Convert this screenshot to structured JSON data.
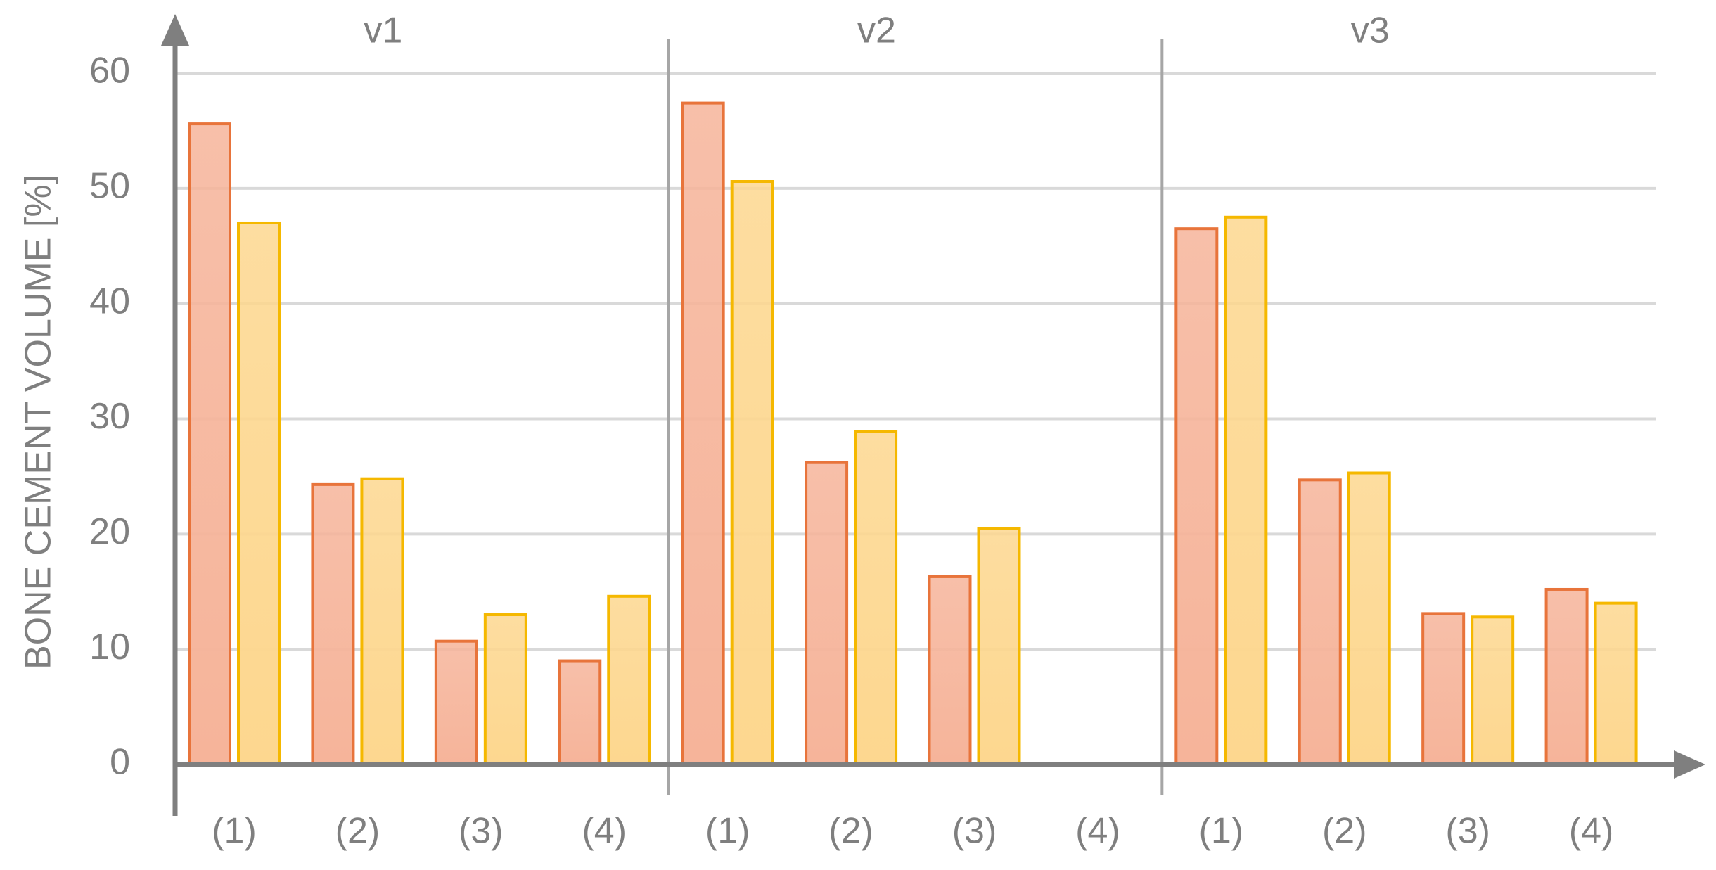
{
  "chart_data": {
    "type": "bar",
    "y_label": "BONE CEMENT VOLUME [%]",
    "panels": [
      "v1",
      "v2",
      "v3"
    ],
    "categories": [
      "(1)",
      "(2)",
      "(3)",
      "(4)",
      "(1)",
      "(2)",
      "(3)",
      "(4)",
      "(1)",
      "(2)",
      "(3)",
      "(4)"
    ],
    "series": [
      {
        "color": "#e8743b",
        "fill": "#f6b49a",
        "values": [
          55.6,
          24.3,
          10.7,
          9.0,
          57.4,
          26.2,
          16.3,
          null,
          46.5,
          24.7,
          13.1,
          15.2
        ]
      },
      {
        "color": "#f5b800",
        "fill": "#fdd78f",
        "values": [
          47.0,
          24.8,
          13.0,
          14.6,
          50.6,
          28.9,
          20.5,
          null,
          47.5,
          25.3,
          12.8,
          14.0
        ]
      }
    ],
    "ylim": [
      0,
      60
    ],
    "yticks": [
      0,
      10,
      20,
      30,
      40,
      50,
      60
    ],
    "grid": true
  }
}
